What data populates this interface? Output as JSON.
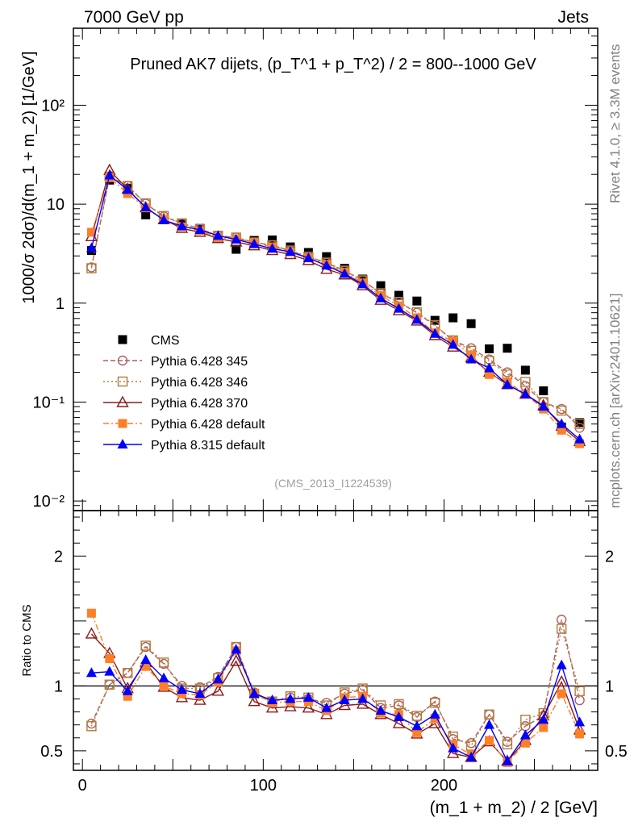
{
  "header": {
    "left": "7000 GeV pp",
    "right": "Jets"
  },
  "side_labels": {
    "top": "Rivet 4.1.0, ≥ 3.3M events",
    "bottom": "mcplots.cern.ch [arXiv:2401.10621]"
  },
  "chart_data": {
    "type": "scatter",
    "title": "Pruned AK7 dijets, (p_T^1 + p_T^2) / 2 = 800--1000 GeV",
    "watermark": "(CMS_2013_I1224539)",
    "xlabel": "(m_1 + m_2) / 2 [GeV]",
    "ylabel": "1000/σ   2dσ)/d(m_1 + m_2) [1/GeV]",
    "ratio_ylabel": "Ratio to CMS",
    "xlim": [
      -5,
      285
    ],
    "ylim": [
      0.008,
      600
    ],
    "ratio_ylim": [
      0.35,
      2.35
    ],
    "x_ticks": [
      0,
      100,
      200
    ],
    "y_tick_labels": [
      "10⁻²",
      "10⁻¹",
      "1",
      "10",
      "10²"
    ],
    "ratio_ticks": [
      "0.5",
      "1",
      "2"
    ],
    "x": [
      5,
      15,
      25,
      35,
      45,
      55,
      65,
      75,
      85,
      95,
      105,
      115,
      125,
      135,
      145,
      155,
      165,
      175,
      185,
      195,
      205,
      215,
      225,
      235,
      245,
      255,
      265,
      275
    ],
    "series": [
      {
        "name": "CMS",
        "color": "#000000",
        "marker": "square-filled",
        "line": "none",
        "values": [
          3.4,
          17.5,
          14.5,
          7.8,
          7.0,
          6.3,
          5.7,
          4.5,
          3.5,
          4.3,
          4.35,
          3.7,
          3.25,
          2.95,
          2.25,
          1.75,
          1.5,
          1.2,
          1.05,
          0.67,
          0.71,
          0.62,
          0.345,
          0.35,
          0.21,
          0.13,
          0.056,
          0.062
        ],
        "ratios": []
      },
      {
        "name": "Pythia 6.428 345",
        "color": "#b15f5f",
        "marker": "circle-open",
        "line": "dashed",
        "values": [
          2.3,
          19,
          15.3,
          10.1,
          7.5,
          6.4,
          5.65,
          4.8,
          4.6,
          4.1,
          3.85,
          3.37,
          2.93,
          2.56,
          2.12,
          1.7,
          1.25,
          1.02,
          0.8,
          0.59,
          0.42,
          0.35,
          0.27,
          0.2,
          0.145,
          0.1,
          0.085,
          0.055
        ],
        "ratios": [
          0.71,
          1.01,
          1.1,
          1.3,
          1.17,
          1.0,
          0.99,
          1.07,
          1.3,
          0.95,
          0.88,
          0.91,
          0.9,
          0.87,
          0.94,
          0.97,
          0.83,
          0.85,
          0.76,
          0.88,
          0.59,
          0.56,
          0.78,
          0.57,
          0.69,
          0.77,
          1.51,
          0.89
        ]
      },
      {
        "name": "Pythia 6.428 346",
        "color": "#b07d3a",
        "marker": "square-open",
        "line": "dotted",
        "values": [
          2.25,
          19,
          15.3,
          10.2,
          7.6,
          6.4,
          5.6,
          4.8,
          4.6,
          4.1,
          3.85,
          3.4,
          2.95,
          2.57,
          2.13,
          1.7,
          1.26,
          1.03,
          0.81,
          0.6,
          0.42,
          0.33,
          0.26,
          0.19,
          0.16,
          0.1,
          0.082,
          0.06
        ],
        "ratios": [
          0.69,
          1.01,
          1.1,
          1.31,
          1.18,
          0.98,
          0.98,
          1.06,
          1.3,
          0.94,
          0.88,
          0.92,
          0.91,
          0.85,
          0.95,
          0.98,
          0.85,
          0.86,
          0.77,
          0.87,
          0.61,
          0.54,
          0.78,
          0.55,
          0.74,
          0.79,
          1.44,
          0.96
        ]
      },
      {
        "name": "Pythia 6.428 370",
        "color": "#8b1a1a",
        "marker": "triangle-open",
        "line": "solid",
        "values": [
          4.7,
          22,
          14.2,
          9.2,
          7.0,
          5.7,
          5.2,
          4.5,
          4.15,
          3.8,
          3.4,
          3.1,
          2.7,
          2.2,
          1.93,
          1.5,
          1.07,
          0.84,
          0.66,
          0.47,
          0.36,
          0.28,
          0.2,
          0.15,
          0.12,
          0.092,
          0.057,
          0.04
        ],
        "ratios": [
          1.4,
          1.25,
          0.98,
          1.18,
          0.99,
          0.91,
          0.89,
          0.96,
          1.19,
          0.88,
          0.83,
          0.84,
          0.83,
          0.78,
          0.85,
          0.86,
          0.78,
          0.71,
          0.63,
          0.71,
          0.48,
          0.45,
          0.57,
          0.42,
          0.58,
          0.77,
          1.03,
          0.66
        ]
      },
      {
        "name": "Pythia 6.428 default",
        "color": "#ff7f27",
        "marker": "square-filled",
        "line": "dashdot",
        "values": [
          5.2,
          18.5,
          12.8,
          9.2,
          7.0,
          5.9,
          5.4,
          4.6,
          4.45,
          4.1,
          3.7,
          3.3,
          2.87,
          2.47,
          2.05,
          1.6,
          1.19,
          0.94,
          0.71,
          0.5,
          0.41,
          0.3,
          0.19,
          0.16,
          0.12,
          0.085,
          0.052,
          0.038
        ],
        "ratios": [
          1.56,
          1.21,
          0.92,
          1.15,
          1.0,
          0.94,
          0.93,
          1.03,
          1.27,
          0.94,
          0.87,
          0.88,
          0.88,
          0.81,
          0.91,
          0.92,
          0.79,
          0.78,
          0.64,
          0.75,
          0.55,
          0.47,
          0.58,
          0.41,
          0.56,
          0.68,
          0.94,
          0.63
        ]
      },
      {
        "name": "Pythia 8.315 default",
        "color": "#0000ff",
        "marker": "triangle-filled",
        "line": "solid",
        "values": [
          3.6,
          19.5,
          14.0,
          9.3,
          6.9,
          6.0,
          5.5,
          4.8,
          4.4,
          3.95,
          3.55,
          3.3,
          2.85,
          2.4,
          1.98,
          1.55,
          1.12,
          0.88,
          0.68,
          0.49,
          0.38,
          0.27,
          0.22,
          0.15,
          0.12,
          0.09,
          0.06,
          0.042
        ],
        "ratios": [
          1.1,
          1.11,
          0.96,
          1.2,
          1.06,
          0.97,
          0.94,
          1.05,
          1.28,
          0.94,
          0.89,
          0.9,
          0.91,
          0.83,
          0.89,
          0.9,
          0.81,
          0.76,
          0.69,
          0.78,
          0.52,
          0.45,
          0.7,
          0.42,
          0.62,
          0.74,
          1.16,
          0.72
        ]
      }
    ]
  }
}
